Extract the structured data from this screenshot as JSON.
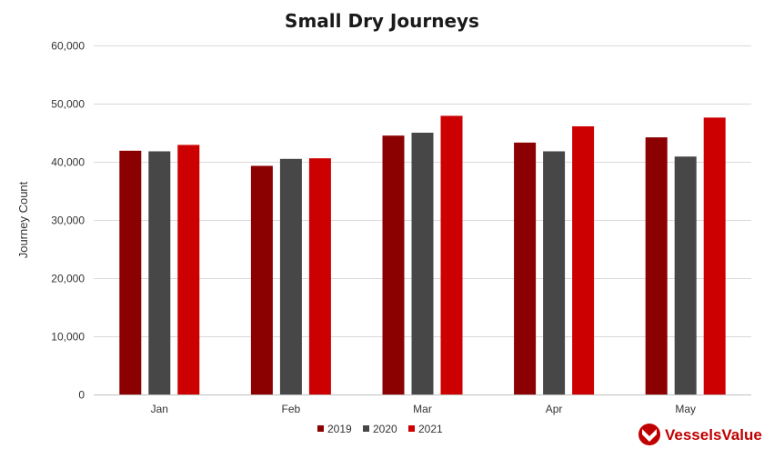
{
  "chart_data": {
    "type": "bar",
    "title": "Small Dry Journeys",
    "xlabel": "",
    "ylabel": "Journey Count",
    "categories": [
      "Jan",
      "Feb",
      "Mar",
      "Apr",
      "May"
    ],
    "series": [
      {
        "name": "2019",
        "color": "#8b0000",
        "values": [
          41900,
          39300,
          44500,
          43300,
          44200
        ]
      },
      {
        "name": "2020",
        "color": "#474747",
        "values": [
          41800,
          40500,
          45000,
          41800,
          40900
        ]
      },
      {
        "name": "2021",
        "color": "#cc0000",
        "values": [
          42900,
          40600,
          47900,
          46100,
          47600
        ]
      }
    ],
    "ylim": [
      0,
      60000
    ],
    "yticks": [
      0,
      10000,
      20000,
      30000,
      40000,
      50000,
      60000
    ],
    "ytick_labels": [
      "0",
      "10,000",
      "20,000",
      "30,000",
      "40,000",
      "50,000",
      "60,000"
    ],
    "grid": true,
    "legend": "bottom-center"
  },
  "brand": {
    "name": "VesselsValue",
    "logo_icon": "vesselsvalue-logo-icon",
    "color": "#c00000"
  }
}
